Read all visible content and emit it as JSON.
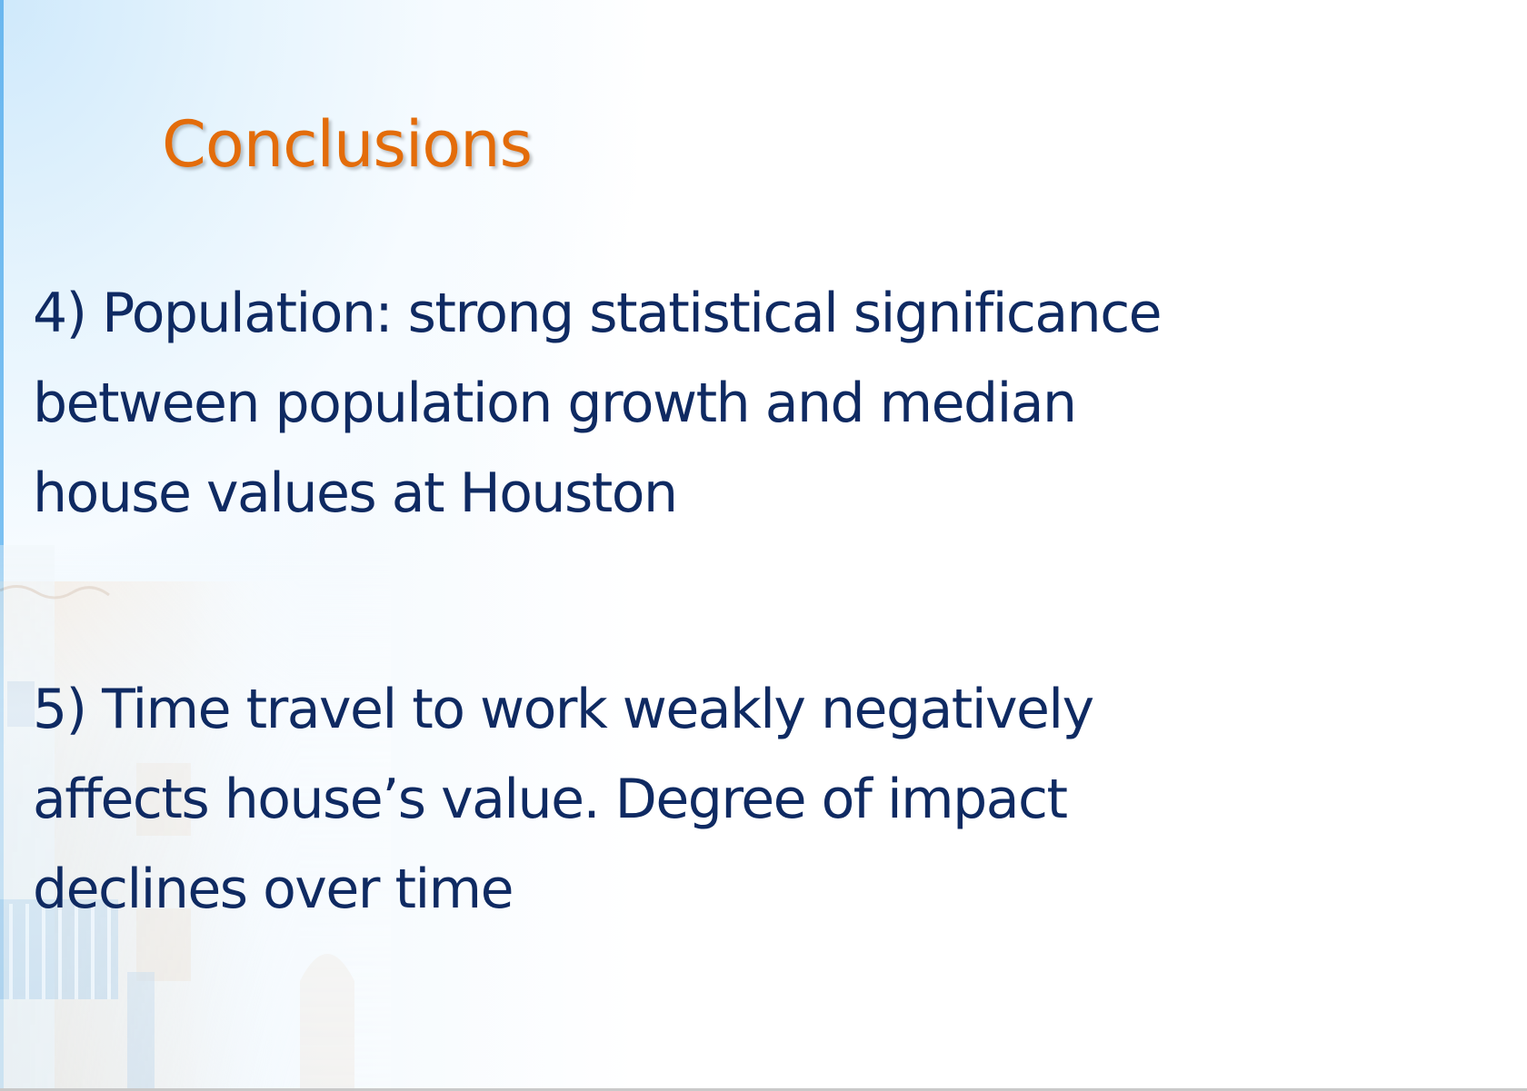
{
  "slide": {
    "title": "Conclusions",
    "points": [
      {
        "lines": [
          "4) Population: strong statistical significance",
          "between population growth and median",
          "house values at Houston"
        ]
      },
      {
        "lines": [
          "5) Time travel to work weakly negatively",
          "affects house’s value. Degree of impact",
          "declines over time"
        ]
      }
    ]
  },
  "colors": {
    "title": "#e36c0a",
    "body_text": "#0f2a62",
    "background_accent": "#cfe9fb"
  }
}
